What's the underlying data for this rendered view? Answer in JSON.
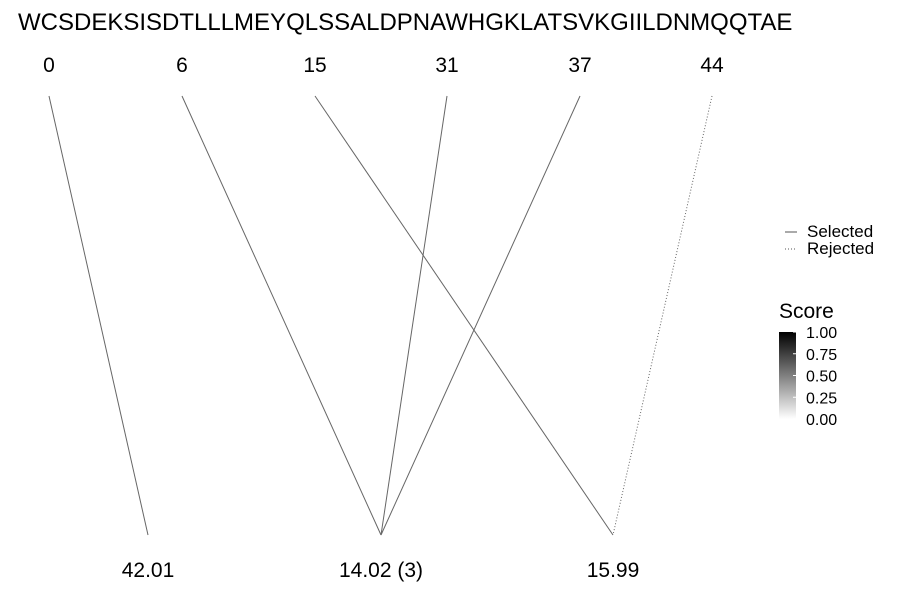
{
  "sequence": "WCSDEKSISDTLLLMEYQLSSALDPNAWHGKLATSVKGIILDNMQQTAE",
  "positions": [
    {
      "id": "p0",
      "label": "0"
    },
    {
      "id": "p6",
      "label": "6"
    },
    {
      "id": "p15",
      "label": "15"
    },
    {
      "id": "p31",
      "label": "31"
    },
    {
      "id": "p37",
      "label": "37"
    },
    {
      "id": "p44",
      "label": "44"
    }
  ],
  "masses": [
    {
      "id": "m1",
      "label": "42.01"
    },
    {
      "id": "m2",
      "label": "14.02 (3)"
    },
    {
      "id": "m3",
      "label": "15.99"
    }
  ],
  "links": [
    {
      "from": "p0",
      "to": "m1",
      "status": "selected",
      "score": 0.6
    },
    {
      "from": "p6",
      "to": "m2",
      "status": "selected",
      "score": 0.6
    },
    {
      "from": "p15",
      "to": "m3",
      "status": "selected",
      "score": 0.6
    },
    {
      "from": "p31",
      "to": "m2",
      "status": "selected",
      "score": 0.6
    },
    {
      "from": "p37",
      "to": "m2",
      "status": "selected",
      "score": 0.6
    },
    {
      "from": "p44",
      "to": "m3",
      "status": "rejected",
      "score": 0.6
    }
  ],
  "legend": {
    "linetype": [
      {
        "status": "selected",
        "label": "Selected"
      },
      {
        "status": "rejected",
        "label": "Rejected"
      }
    ],
    "score": {
      "title": "Score",
      "ticks": [
        "1.00",
        "0.75",
        "0.50",
        "0.25",
        "0.00"
      ],
      "color_high": "#000000",
      "color_low": "#ffffff"
    }
  }
}
